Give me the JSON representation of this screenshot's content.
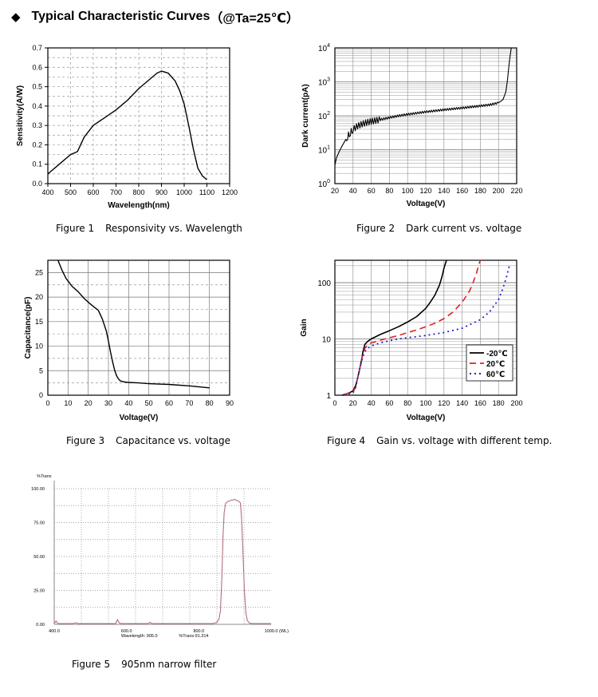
{
  "header": {
    "diamond": "◆",
    "title": "Typical Characteristic Curves",
    "condition": "（@Ta=25℃）"
  },
  "chart_data": [
    {
      "id": "fig1",
      "type": "line",
      "caption_num": "Figure 1",
      "caption_text": "Responsivity vs. Wavelength",
      "xlabel": "Wavelength(nm)",
      "ylabel": "Sensitivity(A/W)",
      "xlim": [
        400,
        1200
      ],
      "ylim": [
        0,
        0.7
      ],
      "xticks": [
        400,
        500,
        600,
        700,
        800,
        900,
        1000,
        1100,
        1200
      ],
      "yticks": [
        0.0,
        0.1,
        0.2,
        0.3,
        0.4,
        0.5,
        0.6,
        0.7
      ],
      "ytick_labels": [
        "0.0",
        "0.1",
        "0.2",
        "0.3",
        "0.4",
        "0.5",
        "0.6",
        "0.7"
      ],
      "series": [
        {
          "name": "Responsivity",
          "x": [
            400,
            450,
            500,
            530,
            560,
            600,
            650,
            700,
            750,
            800,
            850,
            880,
            900,
            930,
            960,
            980,
            1000,
            1020,
            1040,
            1060,
            1080,
            1100
          ],
          "y": [
            0.05,
            0.1,
            0.15,
            0.165,
            0.24,
            0.3,
            0.34,
            0.38,
            0.43,
            0.49,
            0.54,
            0.57,
            0.58,
            0.57,
            0.53,
            0.48,
            0.41,
            0.3,
            0.18,
            0.08,
            0.04,
            0.02
          ]
        }
      ]
    },
    {
      "id": "fig2",
      "type": "line",
      "caption_num": "Figure 2",
      "caption_text": "Dark current vs. voltage",
      "xlabel": "Voltage(V)",
      "ylabel": "Dark current(pA)",
      "yscale": "log",
      "xlim": [
        20,
        220
      ],
      "ylim": [
        1,
        10000
      ],
      "xticks": [
        20,
        40,
        60,
        80,
        100,
        120,
        140,
        160,
        180,
        200,
        220
      ],
      "ytick_exps": [
        0,
        1,
        2,
        3,
        4
      ],
      "series": [
        {
          "name": "Dark current",
          "x": [
            20,
            22,
            25,
            28,
            31,
            34,
            37,
            40,
            45,
            50,
            55,
            60,
            70,
            80,
            90,
            100,
            110,
            120,
            130,
            140,
            150,
            160,
            170,
            180,
            190,
            200,
            205,
            208,
            210,
            212,
            214
          ],
          "y": [
            3.5,
            6,
            9,
            13,
            18,
            25,
            32,
            40,
            50,
            57,
            63,
            68,
            77,
            88,
            100,
            110,
            120,
            130,
            140,
            150,
            160,
            170,
            182,
            195,
            210,
            240,
            300,
            500,
            1200,
            4000,
            10000
          ]
        }
      ]
    },
    {
      "id": "fig3",
      "type": "line",
      "caption_num": "Figure 3",
      "caption_text": "Capacitance vs. voltage",
      "xlabel": "Voltage(V)",
      "ylabel": "Capacitance(pF)",
      "xlim": [
        0,
        90
      ],
      "ylim": [
        0,
        27.5
      ],
      "xticks": [
        0,
        10,
        20,
        30,
        40,
        50,
        60,
        70,
        80,
        90
      ],
      "yticks": [
        0,
        5,
        10,
        15,
        20,
        25
      ],
      "series": [
        {
          "name": "Capacitance",
          "x": [
            5,
            7,
            9,
            12,
            15,
            18,
            21,
            25,
            27,
            29,
            30,
            31,
            32,
            33,
            34,
            35,
            36,
            38,
            40,
            45,
            50,
            60,
            70,
            80
          ],
          "y": [
            27.5,
            25.5,
            23.8,
            22.2,
            21.1,
            19.7,
            18.6,
            17.3,
            15.5,
            13.0,
            11.0,
            8.9,
            6.9,
            5.2,
            4.0,
            3.3,
            2.9,
            2.7,
            2.6,
            2.5,
            2.35,
            2.2,
            1.9,
            1.5
          ]
        }
      ]
    },
    {
      "id": "fig4",
      "type": "line",
      "caption_num": "Figure 4",
      "caption_text": "Gain vs. voltage with different temp.",
      "xlabel": "Voltage(V)",
      "ylabel": "Gain",
      "yscale": "log",
      "xlim": [
        0,
        200
      ],
      "ylim": [
        1,
        250
      ],
      "xticks": [
        0,
        20,
        40,
        60,
        80,
        100,
        120,
        140,
        160,
        180,
        200
      ],
      "yticks": [
        1,
        10,
        100
      ],
      "series": [
        {
          "name": "-20℃",
          "color": "#000000",
          "dash": "solid",
          "x": [
            8,
            12,
            16,
            20,
            23,
            25,
            27,
            29,
            31,
            33,
            36,
            40,
            50,
            60,
            70,
            80,
            90,
            100,
            105,
            110,
            115,
            118,
            120,
            122,
            123
          ],
          "y": [
            1.0,
            1.05,
            1.1,
            1.2,
            1.5,
            2.0,
            2.8,
            4.0,
            6.0,
            8.0,
            9.0,
            10.0,
            12.0,
            14.0,
            16.5,
            20.0,
            25.0,
            35.0,
            45.0,
            60.0,
            90.0,
            130.0,
            180.0,
            230.0,
            250.0
          ]
        },
        {
          "name": "20℃",
          "color": "#dd2222",
          "dash": "8,5",
          "x": [
            10,
            15,
            20,
            23,
            25,
            27,
            29,
            31,
            33,
            36,
            40,
            50,
            60,
            70,
            80,
            90,
            100,
            110,
            120,
            130,
            140,
            148,
            152,
            156,
            158,
            160
          ],
          "y": [
            1.0,
            1.1,
            1.15,
            1.4,
            2.0,
            2.8,
            4.0,
            5.5,
            6.8,
            7.8,
            8.5,
            9.5,
            10.5,
            11.5,
            13.0,
            14.5,
            16.5,
            19.0,
            23.0,
            30.0,
            45.0,
            70.0,
            100.0,
            150.0,
            200.0,
            250.0
          ]
        },
        {
          "name": "60℃",
          "color": "#2222cc",
          "dash": "2,4",
          "x": [
            10,
            15,
            20,
            23,
            25,
            27,
            29,
            31,
            33,
            36,
            40,
            50,
            60,
            70,
            80,
            100,
            120,
            140,
            160,
            170,
            180,
            185,
            189,
            192
          ],
          "y": [
            1.0,
            1.05,
            1.1,
            1.4,
            2.0,
            2.8,
            3.8,
            5.0,
            6.0,
            6.8,
            7.5,
            8.5,
            9.3,
            10.0,
            10.5,
            11.5,
            13.0,
            15.5,
            22.0,
            30.0,
            50.0,
            80.0,
            130.0,
            200.0
          ]
        }
      ],
      "legend": "bottom-right"
    },
    {
      "id": "fig5",
      "type": "line",
      "caption_num": "Figure 5",
      "caption_text": "905nm narrow filter",
      "title_label": "%Trans",
      "xunit_label": "(WL)",
      "xlim": [
        400,
        1000
      ],
      "ylim": [
        0,
        100
      ],
      "xtick_labels": [
        "400.0",
        "600.0",
        "800.0",
        "1000.0"
      ],
      "xtick_values": [
        400,
        600,
        800,
        1000
      ],
      "ytick_labels": [
        "0.00",
        "25.00",
        "50.00",
        "75.00",
        "100.00"
      ],
      "ytick_values": [
        0,
        25,
        50,
        75,
        100
      ],
      "readout_wavelength": "Wavelength: 905.0",
      "readout_trans": "%Trans:91.314",
      "series": [
        {
          "name": "Transmission",
          "color": "#b0707a",
          "x": [
            400,
            405,
            410,
            450,
            460,
            465,
            470,
            560,
            570,
            575,
            580,
            585,
            590,
            650,
            660,
            665,
            670,
            760,
            800,
            840,
            850,
            856,
            860,
            864,
            867,
            870,
            874,
            880,
            890,
            900,
            905,
            910,
            915,
            918,
            922,
            926,
            930,
            934,
            940,
            950,
            1000
          ],
          "y": [
            0.5,
            2.5,
            0.5,
            0.5,
            1.2,
            0.5,
            0.5,
            0.5,
            0.5,
            3.5,
            1.0,
            0.5,
            0.5,
            0.5,
            0.5,
            1.5,
            0.5,
            0.5,
            0.5,
            0.6,
            1.5,
            4.0,
            10.0,
            35.0,
            65.0,
            82.0,
            89.0,
            90.5,
            91.5,
            92.0,
            91.3,
            90.8,
            89.5,
            80.0,
            55.0,
            25.0,
            9.0,
            3.0,
            0.8,
            0.5,
            0.5
          ]
        }
      ]
    }
  ]
}
